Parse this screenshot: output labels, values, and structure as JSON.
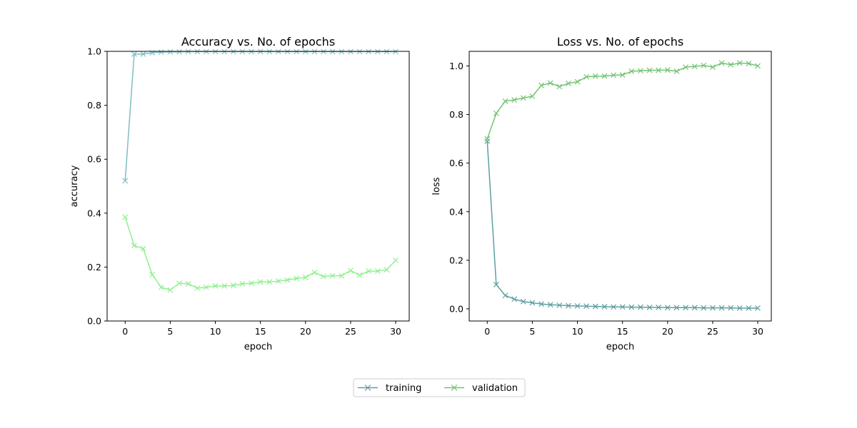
{
  "chart_data": [
    {
      "type": "line",
      "title": "Accuracy vs. No. of epochs",
      "xlabel": "epoch",
      "ylabel": "accuracy",
      "xlim": [
        -2,
        31.5
      ],
      "ylim": [
        0,
        1.0
      ],
      "xticks": [
        0,
        5,
        10,
        15,
        20,
        25,
        30
      ],
      "yticks": [
        0.0,
        0.2,
        0.4,
        0.6,
        0.8,
        1.0
      ],
      "ytick_format": 1,
      "grid": false,
      "x": [
        0,
        1,
        2,
        3,
        4,
        5,
        6,
        7,
        8,
        9,
        10,
        11,
        12,
        13,
        14,
        15,
        16,
        17,
        18,
        19,
        20,
        21,
        22,
        23,
        24,
        25,
        26,
        27,
        28,
        29,
        30
      ],
      "series": [
        {
          "name": "training",
          "color": "#7fbfc4",
          "marker": "x",
          "values": [
            0.52,
            0.99,
            0.99,
            0.995,
            0.997,
            0.998,
            0.998,
            0.999,
            0.999,
            0.999,
            0.999,
            0.999,
            0.999,
            0.999,
            0.999,
            0.999,
            0.999,
            0.999,
            0.999,
            0.999,
            0.999,
            0.999,
            0.999,
            0.999,
            0.999,
            0.999,
            0.999,
            0.999,
            0.999,
            0.999,
            0.999
          ]
        },
        {
          "name": "validation",
          "color": "#90f090",
          "marker": "x",
          "values": [
            0.385,
            0.28,
            0.268,
            0.172,
            0.125,
            0.115,
            0.14,
            0.138,
            0.122,
            0.125,
            0.13,
            0.13,
            0.132,
            0.138,
            0.14,
            0.145,
            0.145,
            0.148,
            0.152,
            0.158,
            0.162,
            0.18,
            0.165,
            0.168,
            0.168,
            0.187,
            0.17,
            0.185,
            0.185,
            0.19,
            0.225
          ]
        }
      ]
    },
    {
      "type": "line",
      "title": "Loss vs. No. of epochs",
      "xlabel": "epoch",
      "ylabel": "loss",
      "xlim": [
        -2,
        31.5
      ],
      "ylim": [
        -0.05,
        1.06
      ],
      "xticks": [
        0,
        5,
        10,
        15,
        20,
        25,
        30
      ],
      "yticks": [
        0.0,
        0.2,
        0.4,
        0.6,
        0.8,
        1.0
      ],
      "ytick_format": 1,
      "grid": false,
      "x": [
        0,
        1,
        2,
        3,
        4,
        5,
        6,
        7,
        8,
        9,
        10,
        11,
        12,
        13,
        14,
        15,
        16,
        17,
        18,
        19,
        20,
        21,
        22,
        23,
        24,
        25,
        26,
        27,
        28,
        29,
        30
      ],
      "series": [
        {
          "name": "training",
          "color": "#5f9ea0",
          "marker": "x",
          "values": [
            0.69,
            0.1,
            0.055,
            0.04,
            0.03,
            0.025,
            0.02,
            0.017,
            0.015,
            0.013,
            0.012,
            0.011,
            0.01,
            0.009,
            0.008,
            0.008,
            0.007,
            0.007,
            0.006,
            0.006,
            0.005,
            0.005,
            0.005,
            0.005,
            0.004,
            0.004,
            0.004,
            0.004,
            0.003,
            0.003,
            0.003
          ]
        },
        {
          "name": "validation",
          "color": "#72c472",
          "marker": "x",
          "values": [
            0.7,
            0.805,
            0.855,
            0.86,
            0.868,
            0.875,
            0.92,
            0.93,
            0.915,
            0.928,
            0.935,
            0.955,
            0.958,
            0.958,
            0.962,
            0.963,
            0.978,
            0.98,
            0.982,
            0.982,
            0.983,
            0.978,
            0.995,
            0.998,
            1.002,
            0.995,
            1.012,
            1.005,
            1.012,
            1.01,
            1.0
          ]
        }
      ]
    }
  ],
  "legend": {
    "placement": "bottom-center",
    "entries": [
      {
        "label": "training",
        "color": "#5f9ea0"
      },
      {
        "label": "validation",
        "color": "#72c472"
      }
    ]
  }
}
